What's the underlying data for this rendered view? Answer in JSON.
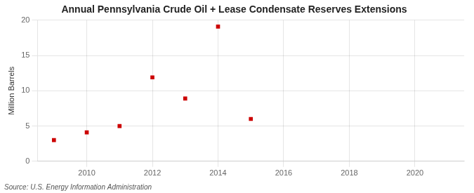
{
  "chart_data": {
    "type": "scatter",
    "title": "Annual Pennsylvania Crude Oil + Lease Condensate Reserves Extensions",
    "ylabel": "Million Barrels",
    "source": "Source: U.S. Energy Information Administration",
    "x": [
      2009,
      2010,
      2011,
      2012,
      2013,
      2014,
      2015
    ],
    "values": [
      3.0,
      4.1,
      5.0,
      11.9,
      8.9,
      19.1,
      6.0
    ],
    "color": "#cc0000",
    "marker": "square",
    "xlim": [
      2008.5,
      2021.5
    ],
    "xticks": [
      2010,
      2012,
      2014,
      2016,
      2018,
      2020
    ],
    "ylim": [
      0,
      20
    ],
    "yticks": [
      0,
      5,
      10,
      15,
      20
    ],
    "grid": true
  }
}
